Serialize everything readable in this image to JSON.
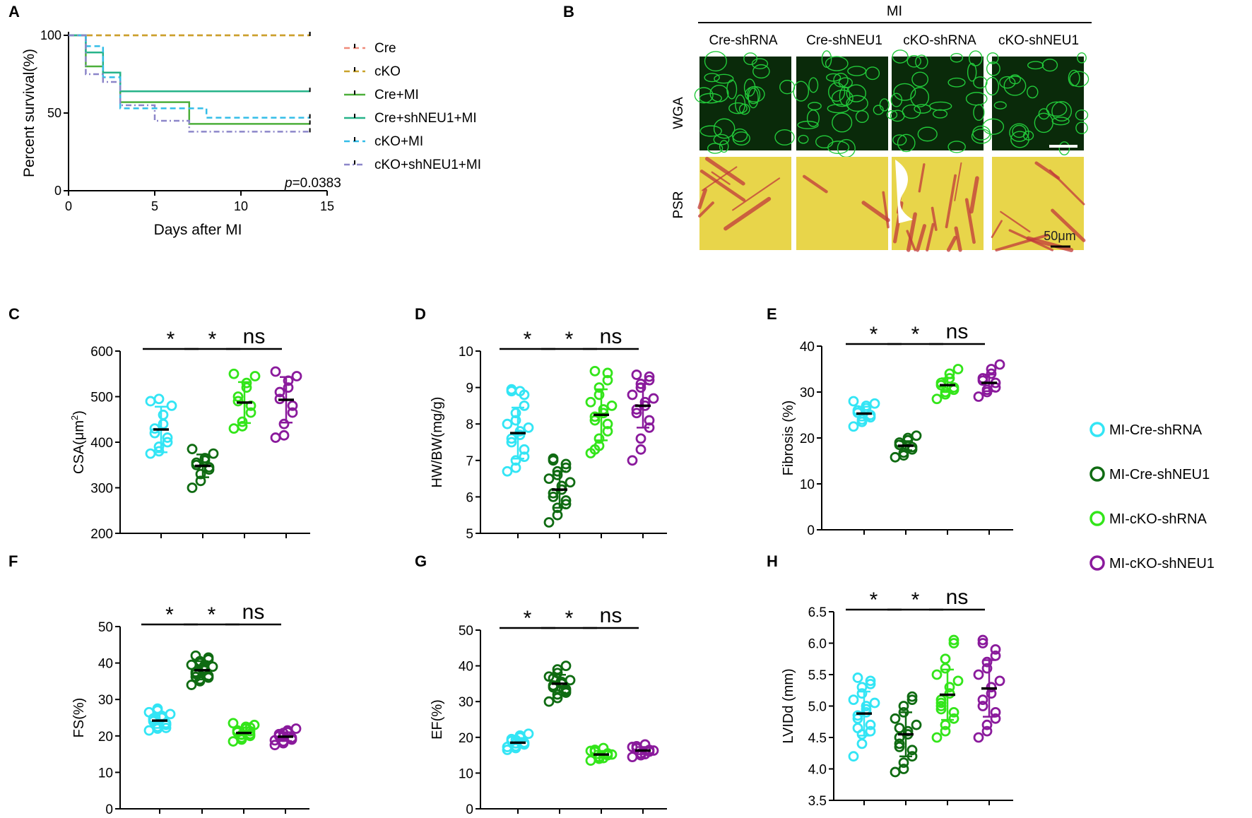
{
  "panel_letters": [
    "A",
    "B",
    "C",
    "D",
    "E",
    "F",
    "G",
    "H"
  ],
  "significance": {
    "star": "*",
    "ns": "ns"
  },
  "panel_b": {
    "header": "MI",
    "columns": [
      "Cre-shRNA",
      "Cre-shNEU1",
      "cKO-shRNA",
      "cKO-shNEU1"
    ],
    "rows": [
      "WGA",
      "PSR"
    ],
    "scale_bar": "50μm",
    "colors": {
      "wga_bg": "#0a2a0a",
      "wga_line": "#22c93a",
      "psr_bg": "#e8d54a",
      "psr_fiber": "#c23a3a"
    }
  },
  "group_legend": {
    "items": [
      {
        "label": "MI-Cre-shRNA",
        "color": "#33e5f5"
      },
      {
        "label": "MI-Cre-shNEU1",
        "color": "#0f6b12"
      },
      {
        "label": "MI-cKO-shRNA",
        "color": "#33e51a"
      },
      {
        "label": "MI-cKO-shNEU1",
        "color": "#8a1a9c"
      }
    ]
  },
  "chart_data": [
    {
      "panel": "A",
      "type": "line",
      "step": true,
      "xlabel": "Days after MI",
      "ylabel": "Percent survival(%)",
      "xlim": [
        0,
        15
      ],
      "ylim": [
        0,
        100
      ],
      "xticks": [
        0,
        5,
        10,
        15
      ],
      "yticks": [
        0,
        50,
        100
      ],
      "annotation": {
        "p_label": "p",
        "p_value": "=0.0383"
      },
      "legend_position": "right",
      "series": [
        {
          "name": "Cre",
          "color": "#f08a7a",
          "dash": "8,5",
          "x": [
            0,
            14
          ],
          "y": [
            100,
            100
          ]
        },
        {
          "name": "cKO",
          "color": "#c9a22a",
          "dash": "8,5",
          "x": [
            0,
            14
          ],
          "y": [
            100,
            100
          ]
        },
        {
          "name": "Cre+MI",
          "color": "#4caf3a",
          "dash": "",
          "x": [
            0,
            1,
            2,
            3,
            7,
            14
          ],
          "y": [
            100,
            80,
            76,
            57,
            43,
            43
          ]
        },
        {
          "name": "Cre+shNEU1+MI",
          "color": "#26b389",
          "dash": "",
          "x": [
            0,
            1,
            2,
            3,
            14
          ],
          "y": [
            100,
            89,
            76,
            64,
            64
          ]
        },
        {
          "name": "cKO+MI",
          "color": "#33bde8",
          "dash": "8,5",
          "x": [
            0,
            1,
            2,
            3,
            8,
            14
          ],
          "y": [
            100,
            93,
            73,
            53,
            47,
            47
          ]
        },
        {
          "name": "cKO+shNEU1+MI",
          "color": "#8c86c9",
          "dash": "8,4,2,4",
          "x": [
            0,
            1,
            2,
            3,
            5,
            7,
            14
          ],
          "y": [
            100,
            75,
            70,
            55,
            45,
            38,
            38
          ]
        }
      ]
    },
    {
      "panel": "C",
      "type": "scatter",
      "ylabel": "CSA(μm²)",
      "ylabel_base": "CSA(μm",
      "ylabel_sup": "2",
      "ylabel_close": ")",
      "ylim": [
        200,
        600
      ],
      "yticks": [
        200,
        300,
        400,
        500,
        600
      ],
      "comparisons": [
        {
          "pair": [
            0,
            1
          ],
          "label": "*"
        },
        {
          "pair": [
            1,
            2
          ],
          "label": "*"
        },
        {
          "pair": [
            2,
            3
          ],
          "label": "ns"
        }
      ],
      "series": [
        {
          "name": "MI-Cre-shRNA",
          "mean": 428,
          "sd": 50,
          "values": [
            375,
            380,
            390,
            400,
            410,
            420,
            430,
            440,
            460,
            480,
            490,
            495
          ]
        },
        {
          "name": "MI-Cre-shNEU1",
          "mean": 348,
          "sd": 25,
          "values": [
            300,
            315,
            330,
            340,
            345,
            350,
            355,
            360,
            365,
            375,
            385
          ]
        },
        {
          "name": "MI-cKO-shRNA",
          "mean": 487,
          "sd": 45,
          "values": [
            430,
            435,
            445,
            465,
            480,
            490,
            500,
            520,
            530,
            545,
            550
          ]
        },
        {
          "name": "MI-cKO-shNEU1",
          "mean": 493,
          "sd": 50,
          "values": [
            410,
            415,
            440,
            465,
            480,
            495,
            510,
            520,
            535,
            545,
            555
          ]
        }
      ]
    },
    {
      "panel": "D",
      "type": "scatter",
      "ylabel": "HW/BW(mg/g)",
      "ylim": [
        5,
        10
      ],
      "yticks": [
        5,
        6,
        7,
        8,
        9,
        10
      ],
      "comparisons": [
        {
          "pair": [
            0,
            1
          ],
          "label": "*"
        },
        {
          "pair": [
            1,
            2
          ],
          "label": "*"
        },
        {
          "pair": [
            2,
            3
          ],
          "label": "ns"
        }
      ],
      "series": [
        {
          "name": "MI-Cre-shRNA",
          "mean": 7.75,
          "sd": 0.7,
          "values": [
            6.7,
            6.8,
            7.0,
            7.1,
            7.3,
            7.5,
            7.6,
            7.7,
            7.8,
            7.9,
            8.0,
            8.1,
            8.3,
            8.5,
            8.8,
            8.9,
            8.95,
            8.9
          ]
        },
        {
          "name": "MI-Cre-shNEU1",
          "mean": 6.2,
          "sd": 0.5,
          "values": [
            5.3,
            5.5,
            5.7,
            5.8,
            5.9,
            6.0,
            6.1,
            6.2,
            6.3,
            6.4,
            6.5,
            6.6,
            6.7,
            6.8,
            6.9,
            7.0,
            7.05
          ]
        },
        {
          "name": "MI-cKO-shRNA",
          "mean": 8.25,
          "sd": 0.7,
          "values": [
            7.2,
            7.4,
            7.6,
            7.8,
            8.0,
            8.1,
            8.2,
            8.3,
            8.4,
            8.5,
            8.6,
            8.8,
            9.0,
            9.2,
            9.4,
            9.45,
            7.3
          ]
        },
        {
          "name": "MI-cKO-shNEU1",
          "mean": 8.5,
          "sd": 0.6,
          "values": [
            7.0,
            7.3,
            7.6,
            7.9,
            8.1,
            8.3,
            8.4,
            8.5,
            8.6,
            8.7,
            8.8,
            9.0,
            9.1,
            9.2,
            9.3,
            9.35
          ]
        }
      ]
    },
    {
      "panel": "E",
      "type": "scatter",
      "ylabel": "Fibrosis (%)",
      "ylim": [
        0,
        40
      ],
      "yticks": [
        0,
        10,
        20,
        30,
        40
      ],
      "comparisons": [
        {
          "pair": [
            0,
            1
          ],
          "label": "*"
        },
        {
          "pair": [
            1,
            2
          ],
          "label": "*"
        },
        {
          "pair": [
            2,
            3
          ],
          "label": "ns"
        }
      ],
      "series": [
        {
          "name": "MI-Cre-shRNA",
          "mean": 25.3,
          "sd": 1.5,
          "values": [
            22.5,
            23.5,
            24.0,
            24.5,
            25.0,
            25.5,
            26.0,
            26.5,
            27.0,
            27.5,
            28.0
          ]
        },
        {
          "name": "MI-Cre-shNEU1",
          "mean": 18.3,
          "sd": 1.0,
          "values": [
            15.8,
            16.2,
            16.8,
            17.5,
            18.0,
            18.5,
            19.0,
            19.5,
            20.0,
            20.5
          ]
        },
        {
          "name": "MI-cKO-shRNA",
          "mean": 31.5,
          "sd": 1.5,
          "values": [
            28.5,
            29.5,
            30.0,
            30.5,
            31.0,
            31.5,
            32.0,
            33.0,
            34.0,
            35.0
          ]
        },
        {
          "name": "MI-cKO-shNEU1",
          "mean": 32.0,
          "sd": 1.8,
          "values": [
            29.0,
            30.0,
            30.5,
            31.0,
            32.0,
            32.5,
            33.0,
            34.0,
            35.0,
            36.0
          ]
        }
      ]
    },
    {
      "panel": "F",
      "type": "scatter",
      "ylabel": "FS(%)",
      "ylim": [
        0,
        50
      ],
      "yticks": [
        0,
        10,
        20,
        30,
        40,
        50
      ],
      "comparisons": [
        {
          "pair": [
            0,
            1
          ],
          "label": "*"
        },
        {
          "pair": [
            1,
            2
          ],
          "label": "*"
        },
        {
          "pair": [
            2,
            3
          ],
          "label": "ns"
        }
      ],
      "series": [
        {
          "name": "MI-Cre-shRNA",
          "mean": 24.2,
          "sd": 2.0,
          "values": [
            21.5,
            22.0,
            22.5,
            23.0,
            23.5,
            24.0,
            24.5,
            25.0,
            25.5,
            26.0,
            26.5,
            27.0,
            27.5,
            22.2,
            23.2,
            24.8
          ]
        },
        {
          "name": "MI-Cre-shNEU1",
          "mean": 38.0,
          "sd": 2.5,
          "values": [
            34.0,
            35.0,
            35.5,
            36.0,
            36.5,
            37.0,
            37.5,
            38.0,
            38.5,
            39.0,
            39.5,
            40.0,
            40.5,
            41.0,
            41.5,
            42.0,
            36.2,
            39.2
          ]
        },
        {
          "name": "MI-cKO-shRNA",
          "mean": 20.8,
          "sd": 1.5,
          "values": [
            18.5,
            19.0,
            19.5,
            20.0,
            20.5,
            21.0,
            21.5,
            22.0,
            22.5,
            23.0,
            23.5,
            19.2,
            20.3,
            21.3,
            22.3
          ]
        },
        {
          "name": "MI-cKO-shNEU1",
          "mean": 19.8,
          "sd": 1.2,
          "values": [
            17.5,
            18.0,
            18.5,
            19.0,
            19.5,
            20.0,
            20.5,
            21.0,
            21.5,
            22.0,
            18.8,
            19.8,
            20.8
          ]
        }
      ]
    },
    {
      "panel": "G",
      "type": "scatter",
      "ylabel": "EF(%)",
      "ylim": [
        0,
        50
      ],
      "yticks": [
        0,
        10,
        20,
        30,
        40,
        50
      ],
      "comparisons": [
        {
          "pair": [
            0,
            1
          ],
          "label": "*"
        },
        {
          "pair": [
            1,
            2
          ],
          "label": "*"
        },
        {
          "pair": [
            2,
            3
          ],
          "label": "ns"
        }
      ],
      "series": [
        {
          "name": "MI-Cre-shRNA",
          "mean": 18.5,
          "sd": 1.3,
          "values": [
            16.5,
            17.0,
            17.5,
            18.0,
            18.5,
            19.0,
            19.5,
            20.0,
            20.5,
            21.0,
            17.3,
            18.3,
            19.3
          ]
        },
        {
          "name": "MI-Cre-shNEU1",
          "mean": 35.0,
          "sd": 2.5,
          "values": [
            30.0,
            31.0,
            32.0,
            33.0,
            33.5,
            34.0,
            34.5,
            35.0,
            35.5,
            36.0,
            37.0,
            38.0,
            39.0,
            40.0,
            32.5,
            36.5
          ]
        },
        {
          "name": "MI-cKO-shRNA",
          "mean": 15.2,
          "sd": 1.0,
          "values": [
            13.5,
            14.0,
            14.5,
            15.0,
            15.5,
            16.0,
            16.5,
            17.0,
            14.2,
            15.2,
            16.2
          ]
        },
        {
          "name": "MI-cKO-shNEU1",
          "mean": 16.3,
          "sd": 1.0,
          "values": [
            14.5,
            15.0,
            15.5,
            16.0,
            16.5,
            17.0,
            17.5,
            18.0,
            15.3,
            16.3,
            17.3
          ]
        }
      ]
    },
    {
      "panel": "H",
      "type": "scatter",
      "ylabel": "LVIDd (mm)",
      "ylim": [
        3.5,
        6.5
      ],
      "yticks": [
        3.5,
        4.0,
        4.5,
        5.0,
        5.5,
        6.0,
        6.5
      ],
      "tick_decimals": 1,
      "comparisons": [
        {
          "pair": [
            0,
            1
          ],
          "label": "*"
        },
        {
          "pair": [
            1,
            2
          ],
          "label": "*"
        },
        {
          "pair": [
            2,
            3
          ],
          "label": "ns"
        }
      ],
      "series": [
        {
          "name": "MI-Cre-shRNA",
          "mean": 4.88,
          "sd": 0.35,
          "values": [
            4.2,
            4.4,
            4.55,
            4.6,
            4.7,
            4.8,
            4.85,
            4.9,
            5.0,
            5.05,
            5.1,
            5.2,
            5.3,
            5.35,
            5.4,
            5.45,
            4.65,
            4.95
          ]
        },
        {
          "name": "MI-Cre-shNEU1",
          "mean": 4.55,
          "sd": 0.35,
          "values": [
            3.95,
            4.0,
            4.1,
            4.2,
            4.3,
            4.4,
            4.5,
            4.55,
            4.6,
            4.7,
            4.8,
            4.9,
            5.0,
            5.1,
            5.15,
            4.35,
            4.65
          ]
        },
        {
          "name": "MI-cKO-shRNA",
          "mean": 5.18,
          "sd": 0.4,
          "values": [
            4.5,
            4.6,
            4.7,
            4.8,
            4.9,
            5.0,
            5.1,
            5.2,
            5.3,
            5.4,
            5.5,
            5.6,
            5.75,
            6.0,
            6.05,
            4.95,
            5.05
          ]
        },
        {
          "name": "MI-cKO-shNEU1",
          "mean": 5.28,
          "sd": 0.45,
          "values": [
            4.5,
            4.6,
            4.7,
            4.8,
            4.9,
            5.0,
            5.1,
            5.2,
            5.3,
            5.4,
            5.5,
            5.6,
            5.7,
            5.8,
            5.9,
            6.0,
            6.05
          ]
        }
      ]
    }
  ]
}
